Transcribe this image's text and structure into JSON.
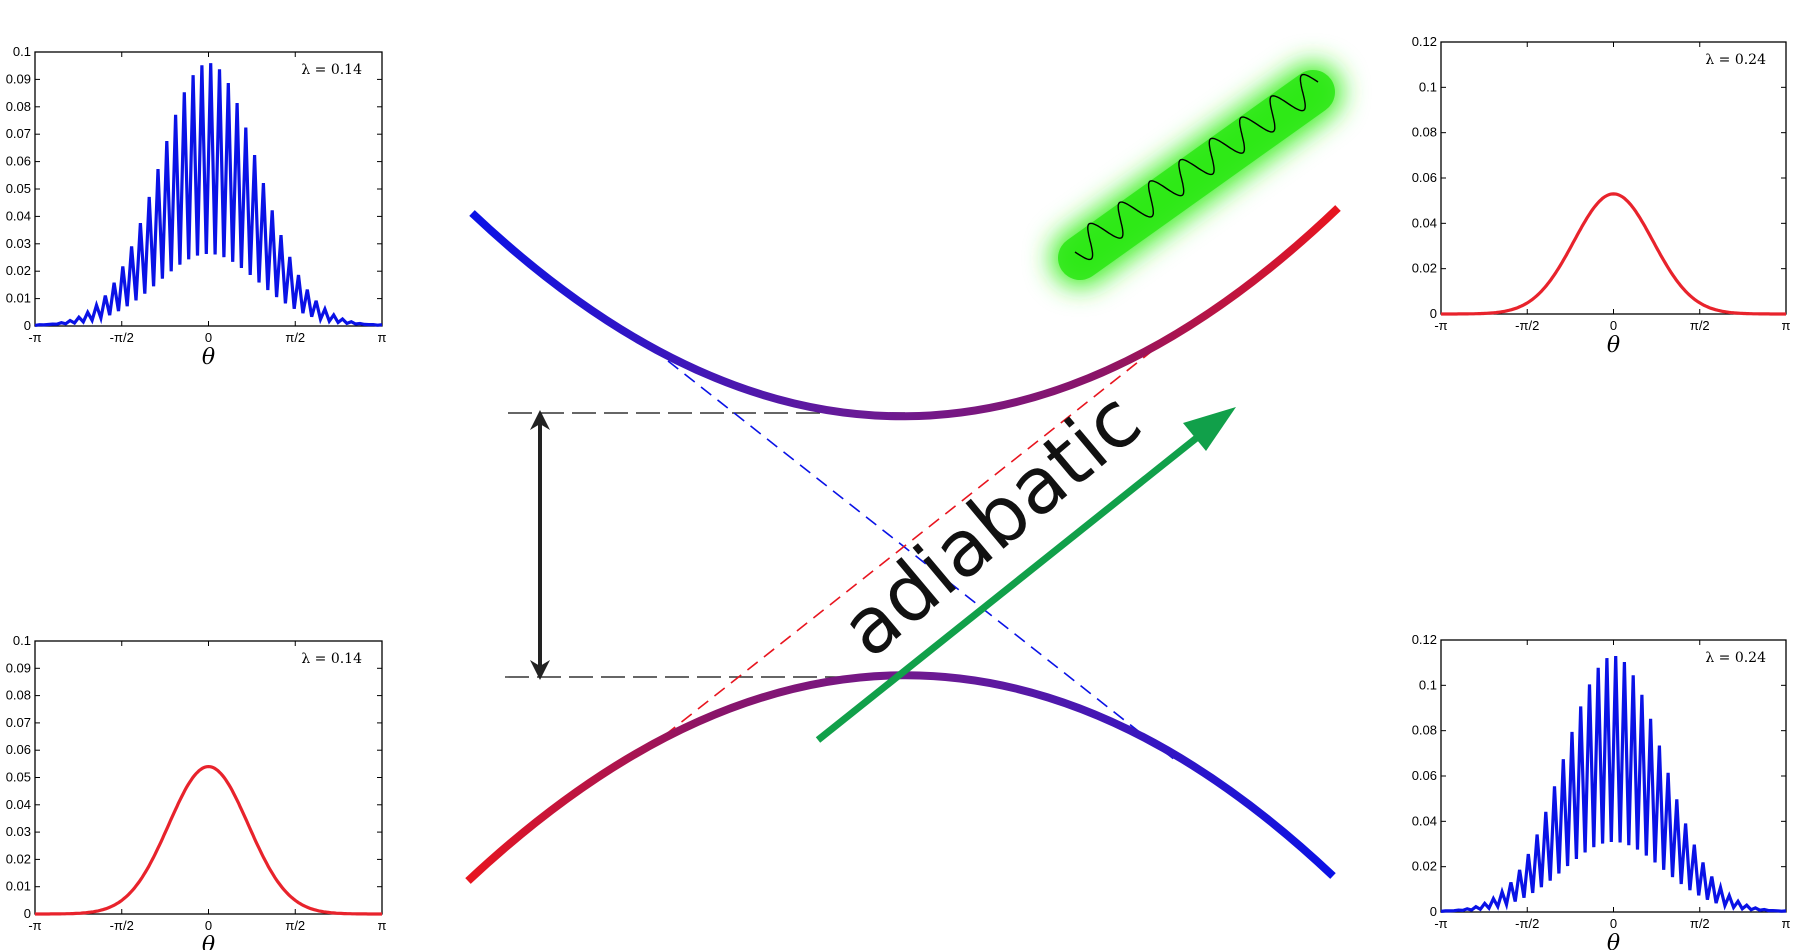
{
  "diagram": {
    "label": "adiabatic",
    "colors": {
      "blue": "#0a12e6",
      "red": "#e8151f",
      "purple": "#7a1a78",
      "green": "#11a04a",
      "glow": "#3cf022",
      "arrow": "#222222"
    }
  },
  "panels": [
    {
      "id": "top-left",
      "lambda": "λ = 0.14",
      "xlabel": "θ",
      "xticks": [
        "-π",
        "-π/2",
        "0",
        "π/2",
        "π"
      ],
      "yticks": [
        "0",
        "0.01",
        "0.02",
        "0.03",
        "0.04",
        "0.05",
        "0.06",
        "0.07",
        "0.08",
        "0.09",
        "0.1"
      ],
      "color": "#0a12e6",
      "kind": "spiky",
      "ymax": 0.1,
      "peak": 0.096
    },
    {
      "id": "bottom-left",
      "lambda": "λ = 0.14",
      "xlabel": "θ",
      "xticks": [
        "-π",
        "-π/2",
        "0",
        "π/2",
        "π"
      ],
      "yticks": [
        "0",
        "0.01",
        "0.02",
        "0.03",
        "0.04",
        "0.05",
        "0.06",
        "0.07",
        "0.08",
        "0.09",
        "0.1"
      ],
      "color": "#e8232c",
      "kind": "gauss",
      "ymax": 0.1,
      "peak": 0.054
    },
    {
      "id": "top-right",
      "lambda": "λ = 0.24",
      "xlabel": "θ",
      "xticks": [
        "-π",
        "-π/2",
        "0",
        "π/2",
        "π"
      ],
      "yticks": [
        "0",
        "0.02",
        "0.04",
        "0.06",
        "0.08",
        "0.1",
        "0.12"
      ],
      "color": "#e8232c",
      "kind": "gauss",
      "ymax": 0.12,
      "peak": 0.053
    },
    {
      "id": "bottom-right",
      "lambda": "λ = 0.24",
      "xlabel": "θ",
      "xticks": [
        "-π",
        "-π/2",
        "0",
        "π/2",
        "π"
      ],
      "yticks": [
        "0",
        "0.02",
        "0.04",
        "0.06",
        "0.08",
        "0.1",
        "0.12"
      ],
      "color": "#0a12e6",
      "kind": "spiky",
      "ymax": 0.12,
      "peak": 0.113
    }
  ]
}
